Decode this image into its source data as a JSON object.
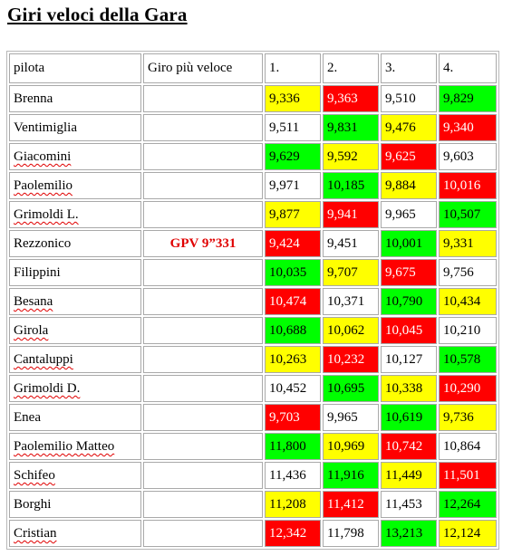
{
  "title": "Giri veloci della Gara",
  "colors": {
    "yellow": "#ffff00",
    "red": "#ff0000",
    "green": "#00ff00",
    "white": "#ffffff",
    "gpv_text": "#e00000"
  },
  "headers": [
    "pilota",
    "Giro più veloce",
    "1.",
    "2.",
    "3.",
    "4."
  ],
  "rows": [
    {
      "name": "Brenna",
      "spell": false,
      "gpv": "",
      "laps": [
        {
          "v": "9,336",
          "c": "yellow"
        },
        {
          "v": "9,363",
          "c": "red"
        },
        {
          "v": "9,510",
          "c": "white"
        },
        {
          "v": "9,829",
          "c": "green"
        }
      ]
    },
    {
      "name": "Ventimiglia",
      "spell": false,
      "gpv": "",
      "laps": [
        {
          "v": "9,511",
          "c": "white"
        },
        {
          "v": "9,831",
          "c": "green"
        },
        {
          "v": "9,476",
          "c": "yellow"
        },
        {
          "v": "9,340",
          "c": "red"
        }
      ]
    },
    {
      "name": "Giacomini",
      "spell": true,
      "gpv": "",
      "laps": [
        {
          "v": "9,629",
          "c": "green"
        },
        {
          "v": "9,592",
          "c": "yellow"
        },
        {
          "v": "9,625",
          "c": "red"
        },
        {
          "v": "9,603",
          "c": "white"
        }
      ]
    },
    {
      "name": "Paolemilio",
      "spell": true,
      "gpv": "",
      "laps": [
        {
          "v": "9,971",
          "c": "white"
        },
        {
          "v": "10,185",
          "c": "green"
        },
        {
          "v": "9,884",
          "c": "yellow"
        },
        {
          "v": "10,016",
          "c": "red"
        }
      ]
    },
    {
      "name": "Grimoldi L.",
      "spell": true,
      "gpv": "",
      "laps": [
        {
          "v": "9,877",
          "c": "yellow"
        },
        {
          "v": "9,941",
          "c": "red"
        },
        {
          "v": "9,965",
          "c": "white"
        },
        {
          "v": "10,507",
          "c": "green"
        }
      ]
    },
    {
      "name": "Rezzonico",
      "spell": false,
      "gpv": "GPV 9”331",
      "laps": [
        {
          "v": "9,424",
          "c": "red"
        },
        {
          "v": "9,451",
          "c": "white"
        },
        {
          "v": "10,001",
          "c": "green"
        },
        {
          "v": "9,331",
          "c": "yellow"
        }
      ]
    },
    {
      "name": "Filippini",
      "spell": false,
      "gpv": "",
      "laps": [
        {
          "v": "10,035",
          "c": "green"
        },
        {
          "v": "9,707",
          "c": "yellow"
        },
        {
          "v": "9,675",
          "c": "red"
        },
        {
          "v": "9,756",
          "c": "white"
        }
      ]
    },
    {
      "name": "Besana",
      "spell": true,
      "gpv": "",
      "laps": [
        {
          "v": "10,474",
          "c": "red"
        },
        {
          "v": "10,371",
          "c": "white"
        },
        {
          "v": "10,790",
          "c": "green"
        },
        {
          "v": "10,434",
          "c": "yellow"
        }
      ]
    },
    {
      "name": "Girola",
      "spell": true,
      "gpv": "",
      "laps": [
        {
          "v": "10,688",
          "c": "green"
        },
        {
          "v": "10,062",
          "c": "yellow"
        },
        {
          "v": "10,045",
          "c": "red"
        },
        {
          "v": "10,210",
          "c": "white"
        }
      ]
    },
    {
      "name": "Cantaluppi",
      "spell": true,
      "gpv": "",
      "laps": [
        {
          "v": "10,263",
          "c": "yellow"
        },
        {
          "v": "10,232",
          "c": "red"
        },
        {
          "v": "10,127",
          "c": "white"
        },
        {
          "v": "10,578",
          "c": "green"
        }
      ]
    },
    {
      "name": "Grimoldi D.",
      "spell": true,
      "gpv": "",
      "laps": [
        {
          "v": "10,452",
          "c": "white"
        },
        {
          "v": "10,695",
          "c": "green"
        },
        {
          "v": "10,338",
          "c": "yellow"
        },
        {
          "v": "10,290",
          "c": "red"
        }
      ]
    },
    {
      "name": "Enea",
      "spell": false,
      "gpv": "",
      "laps": [
        {
          "v": "9,703",
          "c": "red"
        },
        {
          "v": "9,965",
          "c": "white"
        },
        {
          "v": "10,619",
          "c": "green"
        },
        {
          "v": "9,736",
          "c": "yellow"
        }
      ]
    },
    {
      "name": "Paolemilio Matteo",
      "spell": true,
      "gpv": "",
      "laps": [
        {
          "v": "11,800",
          "c": "green"
        },
        {
          "v": "10,969",
          "c": "yellow"
        },
        {
          "v": "10,742",
          "c": "red"
        },
        {
          "v": "10,864",
          "c": "white"
        }
      ]
    },
    {
      "name": "Schifeo",
      "spell": true,
      "gpv": "",
      "laps": [
        {
          "v": "11,436",
          "c": "white"
        },
        {
          "v": "11,916",
          "c": "green"
        },
        {
          "v": "11,449",
          "c": "yellow"
        },
        {
          "v": "11,501",
          "c": "red"
        }
      ]
    },
    {
      "name": "Borghi",
      "spell": false,
      "gpv": "",
      "laps": [
        {
          "v": "11,208",
          "c": "yellow"
        },
        {
          "v": "11,412",
          "c": "red"
        },
        {
          "v": "11,453",
          "c": "white"
        },
        {
          "v": "12,264",
          "c": "green"
        }
      ]
    },
    {
      "name": "Cristian",
      "spell": true,
      "gpv": "",
      "laps": [
        {
          "v": "12,342",
          "c": "red"
        },
        {
          "v": "11,798",
          "c": "white"
        },
        {
          "v": "13,213",
          "c": "green"
        },
        {
          "v": "12,124",
          "c": "yellow"
        }
      ]
    }
  ]
}
